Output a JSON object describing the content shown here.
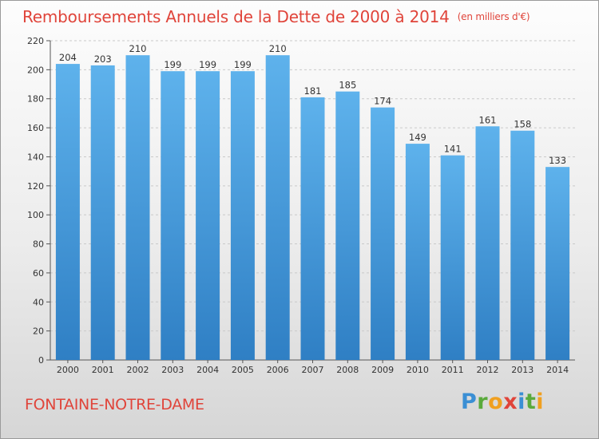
{
  "title": "Remboursements Annuels de la Dette de 2000 à 2014",
  "unit_note": "(en milliers d'€)",
  "commune": "FONTAINE-NOTRE-DAME",
  "brand": "Proxiti",
  "colors": {
    "title": "#e0443a",
    "bar_top": "#5eb2ec",
    "bar_bottom": "#2f7fc4"
  },
  "chart_data": {
    "type": "bar",
    "title": "Remboursements Annuels de la Dette de 2000 à 2014",
    "subtitle": "(en milliers d'€)",
    "categories": [
      "2000",
      "2001",
      "2002",
      "2003",
      "2004",
      "2005",
      "2006",
      "2007",
      "2008",
      "2009",
      "2010",
      "2011",
      "2012",
      "2013",
      "2014"
    ],
    "values": [
      204,
      203,
      210,
      199,
      199,
      199,
      210,
      181,
      185,
      174,
      149,
      141,
      161,
      158,
      133
    ],
    "ylim": [
      0,
      220
    ],
    "yticks": [
      0,
      20,
      40,
      60,
      80,
      100,
      120,
      140,
      160,
      180,
      200,
      220
    ],
    "grid": true,
    "xlabel": "",
    "ylabel": ""
  }
}
